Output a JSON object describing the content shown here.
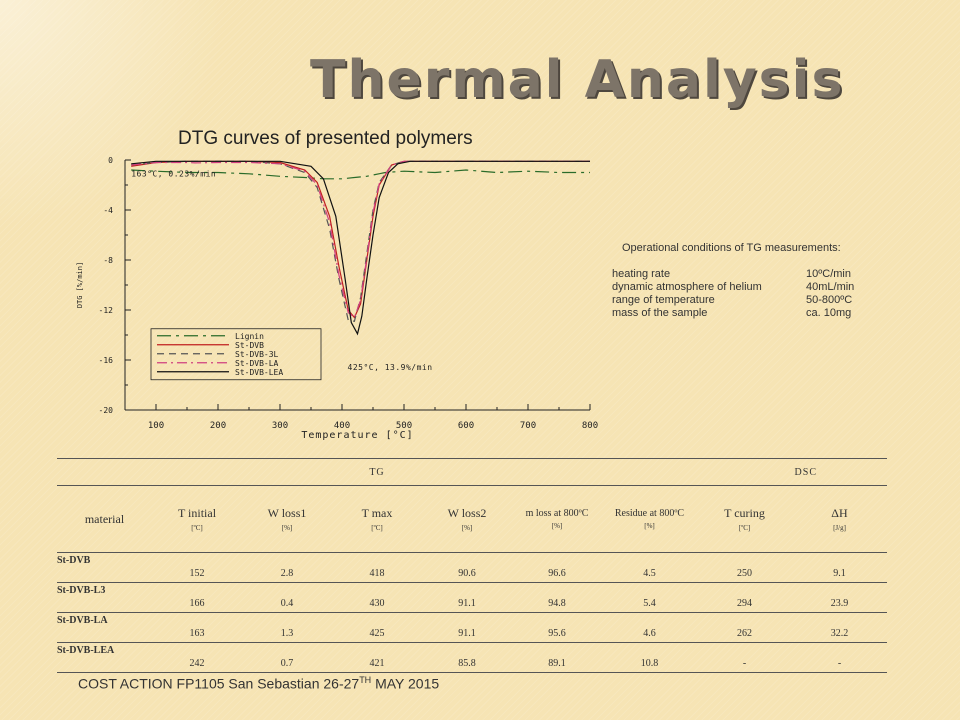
{
  "slide": {
    "title": "Thermal Analysis",
    "subtitle": "DTG curves of presented polymers",
    "footer_main": "COST ACTION FP1105 San Sebastian 26-27",
    "footer_sup": "TH",
    "footer_tail": " MAY 2015"
  },
  "chart_data": {
    "type": "line",
    "xlabel": "Temperature [°C]",
    "ylabel": "DTG [%/min]",
    "xlim": [
      50,
      800
    ],
    "ylim": [
      -20,
      0
    ],
    "xticks": [
      "100",
      "200",
      "300",
      "400",
      "500",
      "600",
      "700",
      "800"
    ],
    "yticks": [
      "0",
      "-4",
      "-8",
      "-12",
      "-16",
      "-20"
    ],
    "annotations": [
      "163°C, 0.23%/min",
      "425°C, 13.9%/min"
    ],
    "legend_position": "bottom-left",
    "series": [
      {
        "name": "Lignin",
        "color": "#2a6b2a",
        "dash": "14 5 3 5",
        "x": [
          60,
          100,
          150,
          200,
          250,
          300,
          340,
          370,
          390,
          400,
          420,
          440,
          450,
          470,
          500,
          550,
          600,
          650,
          700,
          750,
          800
        ],
        "y": [
          -0.8,
          -0.9,
          -1.0,
          -1.0,
          -1.1,
          -1.3,
          -1.4,
          -1.5,
          -1.5,
          -1.5,
          -1.4,
          -1.3,
          -1.2,
          -1.0,
          -0.9,
          -1.0,
          -0.8,
          -1.0,
          -0.9,
          -1.0,
          -1.0
        ]
      },
      {
        "name": "St-DVB",
        "color": "#c02020",
        "dash": "",
        "x": [
          60,
          100,
          150,
          200,
          250,
          300,
          340,
          360,
          380,
          395,
          410,
          420,
          430,
          440,
          450,
          460,
          480,
          500,
          550,
          600,
          700,
          800
        ],
        "y": [
          -0.5,
          -0.2,
          -0.1,
          -0.1,
          -0.1,
          -0.2,
          -0.8,
          -1.8,
          -4.5,
          -8.5,
          -12.0,
          -12.6,
          -11.5,
          -8.0,
          -4.5,
          -2.0,
          -0.4,
          -0.1,
          -0.1,
          -0.1,
          -0.1,
          -0.1
        ]
      },
      {
        "name": "St-DVB-3L",
        "color": "#555555",
        "dash": "7 5",
        "x": [
          60,
          100,
          150,
          200,
          250,
          300,
          340,
          360,
          380,
          395,
          410,
          420,
          430,
          440,
          450,
          460,
          480,
          500,
          550,
          600,
          700,
          800
        ],
        "y": [
          -0.4,
          -0.2,
          -0.1,
          -0.1,
          -0.1,
          -0.3,
          -1.0,
          -2.2,
          -5.5,
          -9.5,
          -12.8,
          -12.9,
          -11.0,
          -7.5,
          -4.0,
          -1.8,
          -0.4,
          -0.1,
          -0.1,
          -0.1,
          -0.1,
          -0.1
        ]
      },
      {
        "name": "St-DVB-LA",
        "color": "#d04080",
        "dash": "10 4 2 4",
        "x": [
          60,
          100,
          150,
          163,
          200,
          250,
          300,
          340,
          360,
          380,
          395,
          410,
          420,
          430,
          440,
          450,
          460,
          480,
          500,
          550,
          600,
          700,
          800
        ],
        "y": [
          -0.4,
          -0.2,
          -0.2,
          -0.23,
          -0.2,
          -0.2,
          -0.3,
          -0.9,
          -2.0,
          -5.0,
          -9.2,
          -12.2,
          -12.6,
          -11.2,
          -7.8,
          -4.2,
          -1.9,
          -0.4,
          -0.1,
          -0.1,
          -0.1,
          -0.1,
          -0.1
        ]
      },
      {
        "name": "St-DVB-LEA",
        "color": "#111111",
        "dash": "",
        "x": [
          60,
          100,
          150,
          200,
          250,
          300,
          350,
          370,
          390,
          405,
          415,
          425,
          432,
          440,
          450,
          460,
          475,
          490,
          510,
          550,
          600,
          700,
          800
        ],
        "y": [
          -0.3,
          -0.1,
          -0.1,
          -0.1,
          -0.1,
          -0.1,
          -0.5,
          -1.5,
          -4.5,
          -9.5,
          -13.0,
          -13.9,
          -12.5,
          -9.5,
          -6.0,
          -3.0,
          -1.0,
          -0.3,
          -0.1,
          -0.1,
          -0.1,
          -0.1,
          -0.1
        ]
      }
    ]
  },
  "conditions": {
    "title": "Operational conditions of TG measurements:",
    "rows": [
      {
        "label": "heating rate",
        "value": "10ºC/min"
      },
      {
        "label": "dynamic atmosphere of helium",
        "value": "40mL/min"
      },
      {
        "label": "range of temperature",
        "value": "50-800ºC"
      },
      {
        "label": "mass of the sample",
        "value": "ca. 10mg"
      }
    ]
  },
  "table": {
    "group_tg": "TG",
    "group_dsc": "DSC",
    "columns": [
      {
        "main": "material",
        "unit": ""
      },
      {
        "main": "T initial",
        "unit": "[ºC]"
      },
      {
        "main": "W loss1",
        "unit": "[%]"
      },
      {
        "main": "T max",
        "unit": "[ºC]"
      },
      {
        "main": "W loss2",
        "unit": "[%]"
      },
      {
        "main": "m loss at 800ºC",
        "unit": "[%]"
      },
      {
        "main": "Residue at 800ºC",
        "unit": "[%]"
      },
      {
        "main": "T curing",
        "unit": "[ºC]"
      },
      {
        "main": "ΔH",
        "unit": "[J/g]"
      }
    ],
    "rows": [
      [
        "St-DVB",
        "152",
        "2.8",
        "418",
        "90.6",
        "96.6",
        "4.5",
        "250",
        "9.1"
      ],
      [
        "St-DVB-L3",
        "166",
        "0.4",
        "430",
        "91.1",
        "94.8",
        "5.4",
        "294",
        "23.9"
      ],
      [
        "St-DVB-LA",
        "163",
        "1.3",
        "425",
        "91.1",
        "95.6",
        "4.6",
        "262",
        "32.2"
      ],
      [
        "St-DVB-LEA",
        "242",
        "0.7",
        "421",
        "85.8",
        "89.1",
        "10.8",
        "-",
        "-"
      ]
    ]
  }
}
